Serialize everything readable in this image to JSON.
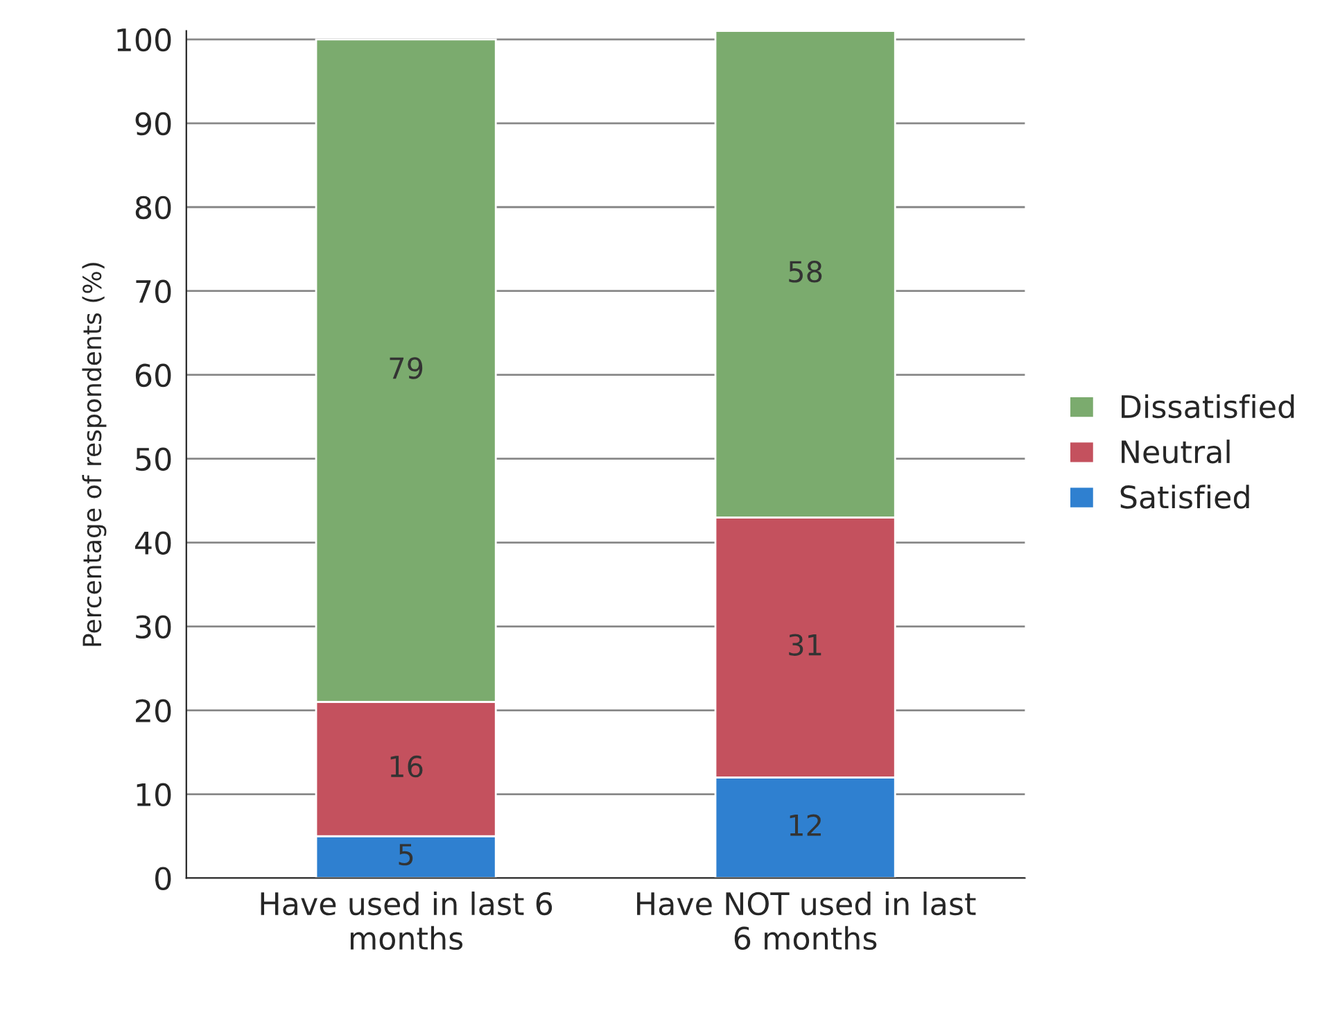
{
  "chart_data": {
    "type": "bar",
    "stacked": true,
    "ylabel": "Percentage of respondents (%)",
    "categories": [
      "Have used in last 6 months",
      "Have NOT used in last 6 months"
    ],
    "series": [
      {
        "name": "Satisfied",
        "color": "#2f80d0",
        "values": [
          5,
          12
        ]
      },
      {
        "name": "Neutral",
        "color": "#c4515e",
        "values": [
          16,
          31
        ]
      },
      {
        "name": "Dissatisfied",
        "color": "#7bab6e",
        "values": [
          79,
          58
        ]
      }
    ],
    "ylim": [
      0,
      101
    ],
    "yticks": [
      0,
      10,
      20,
      30,
      40,
      50,
      60,
      70,
      80,
      90,
      100
    ],
    "grid": "y",
    "legend": "right",
    "data_labels": true
  }
}
